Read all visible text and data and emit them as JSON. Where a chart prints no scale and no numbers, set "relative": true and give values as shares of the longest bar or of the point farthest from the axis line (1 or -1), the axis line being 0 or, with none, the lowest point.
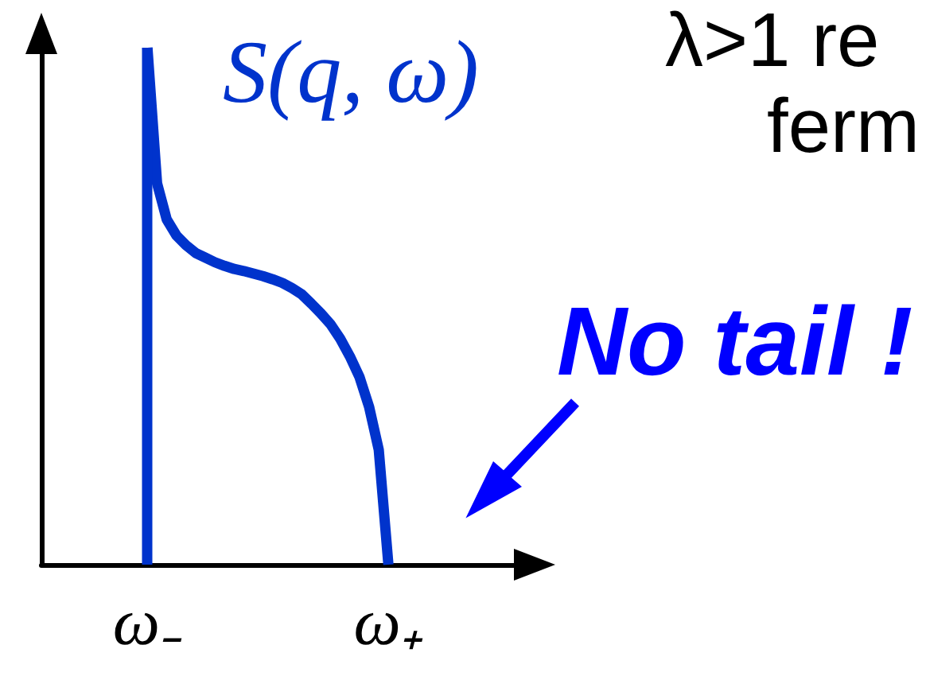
{
  "chart_data": {
    "type": "line",
    "relative": true,
    "categories": [
      null,
      null,
      null,
      null,
      null,
      null,
      null,
      null,
      null,
      null,
      null,
      "ω₋",
      null,
      null,
      null,
      null,
      null,
      null,
      null,
      null,
      null,
      null,
      null,
      null,
      null,
      null,
      null,
      null,
      null,
      null,
      null,
      null,
      null,
      null,
      null,
      null,
      "ω₊",
      null,
      null,
      null,
      null,
      null,
      null,
      null,
      null,
      null,
      null,
      null,
      null,
      null,
      null,
      null
    ],
    "series": [
      {
        "name": "S(q, ω)",
        "color": "#0033cc",
        "values": [
          null,
          null,
          null,
          null,
          null,
          null,
          null,
          null,
          null,
          null,
          null,
          1,
          0.738,
          0.668,
          0.637,
          0.618,
          0.603,
          0.594,
          0.585,
          0.578,
          0.572,
          0.568,
          0.563,
          0.558,
          0.552,
          0.545,
          0.535,
          0.523,
          0.505,
          0.486,
          0.465,
          0.437,
          0.403,
          0.363,
          0.305,
          0.222,
          0,
          null,
          null,
          null,
          null,
          null,
          null,
          null,
          null,
          null,
          null,
          null,
          null,
          null,
          null,
          null
        ]
      }
    ],
    "ref_lines": [
      {
        "axis": "x",
        "value": "ω₋",
        "color": "#0033cc",
        "line_style": "solid"
      }
    ],
    "marker": "none",
    "line_style": "solid",
    "annotations": [
      "λ>1 re",
      "ferm",
      "No tail !"
    ]
  }
}
